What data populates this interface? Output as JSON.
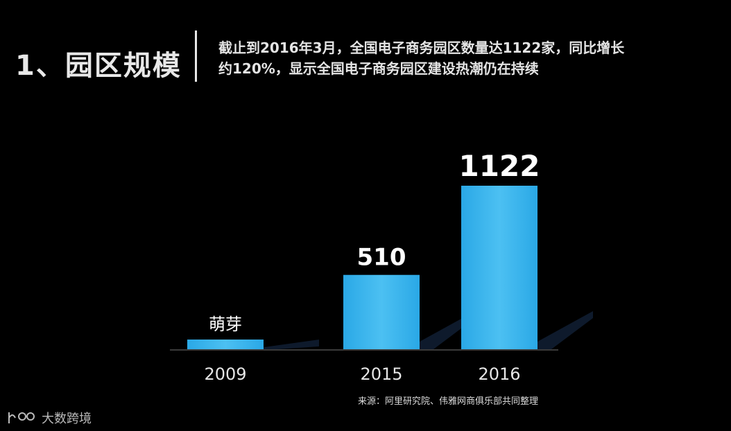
{
  "header": {
    "section_title": "1、园区规模",
    "description_line1": "截止到2016年3月，全国电子商务园区数量达1122家，同比增长",
    "description_line2": "约120%，显示全国电子商务园区建设热潮仍在持续"
  },
  "chart_data": {
    "type": "bar",
    "categories": [
      "2009",
      "2015",
      "2016"
    ],
    "values": [
      30,
      510,
      1122
    ],
    "data_labels": [
      "萌芽",
      "510",
      "1122"
    ],
    "bar_color": "#2aa8e6",
    "bar_color_light": "#4cc0f2",
    "shadow_color": "#0e1a2c",
    "xlabel": "",
    "ylabel": "",
    "grid": false,
    "legend": "none"
  },
  "source": "来源：阿里研究院、伟雅网商俱乐部共同整理",
  "watermark": {
    "text": "大数跨境",
    "icon": "logo-icon"
  }
}
